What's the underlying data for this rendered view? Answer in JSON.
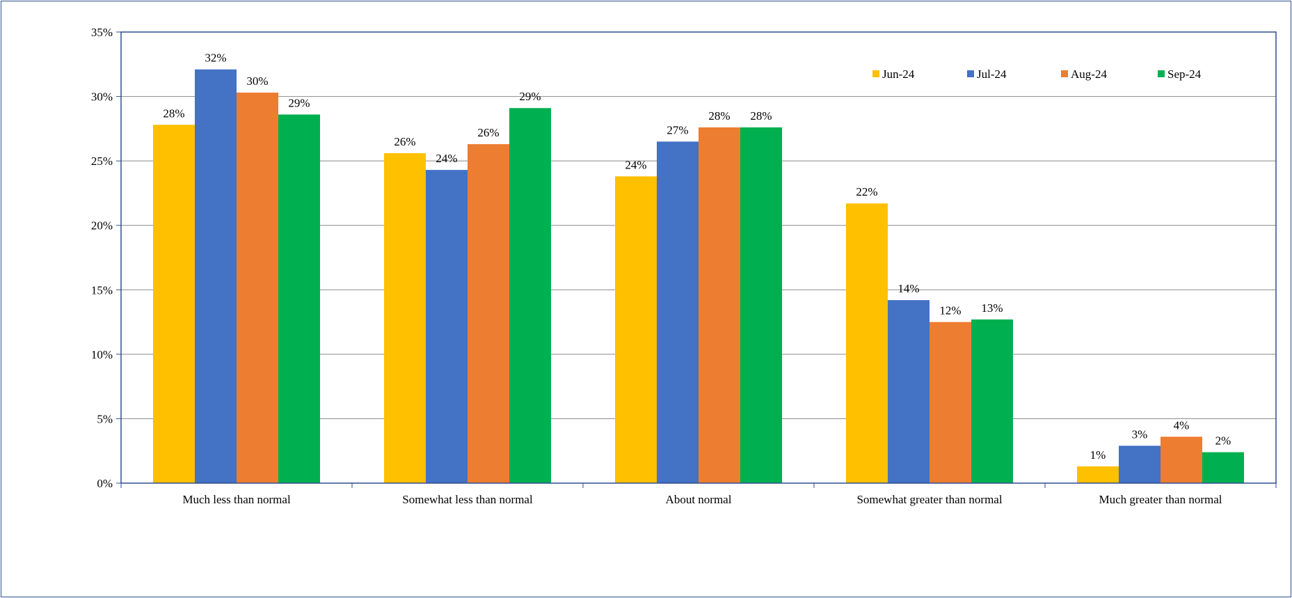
{
  "chart_data": {
    "type": "bar",
    "categories": [
      "Much less than normal",
      "Somewhat less than normal",
      "About normal",
      "Somewhat greater than normal",
      "Much greater than normal"
    ],
    "series": [
      {
        "name": "Jun-24",
        "color": "#ffc000",
        "values": [
          27.8,
          25.6,
          23.8,
          21.7,
          1.3
        ],
        "labels": [
          "28%",
          "26%",
          "24%",
          "22%",
          "1%"
        ]
      },
      {
        "name": "Jul-24",
        "color": "#4472c4",
        "values": [
          32.1,
          24.3,
          26.5,
          14.2,
          2.9
        ],
        "labels": [
          "32%",
          "24%",
          "27%",
          "14%",
          "3%"
        ]
      },
      {
        "name": "Aug-24",
        "color": "#ed7d31",
        "values": [
          30.3,
          26.3,
          27.6,
          12.5,
          3.6
        ],
        "labels": [
          "30%",
          "26%",
          "28%",
          "12%",
          "4%"
        ]
      },
      {
        "name": "Sep-24",
        "color": "#00b050",
        "values": [
          28.6,
          29.1,
          27.6,
          12.7,
          2.4
        ],
        "labels": [
          "29%",
          "29%",
          "28%",
          "13%",
          "2%"
        ]
      }
    ],
    "y_ticks": [
      "0%",
      "5%",
      "10%",
      "15%",
      "20%",
      "25%",
      "30%",
      "35%"
    ],
    "ylim": [
      0,
      35
    ],
    "title": "",
    "xlabel": "",
    "ylabel": "",
    "grid": true,
    "legend_position": "top-right"
  }
}
